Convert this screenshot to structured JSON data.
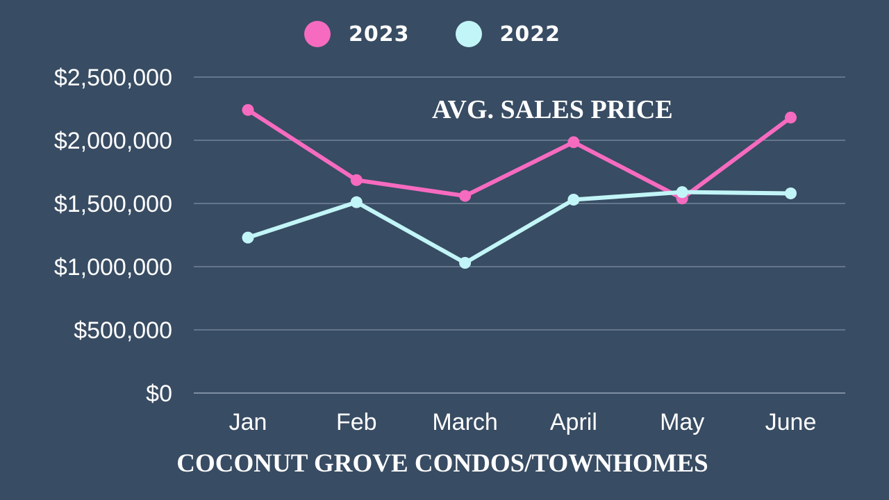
{
  "chart_data": {
    "type": "line",
    "title": "AVG. SALES PRICE",
    "subtitle": "COCONUT GROVE CONDOS/TOWNHOMES",
    "categories": [
      "Jan",
      "Feb",
      "March",
      "April",
      "May",
      "June"
    ],
    "series": [
      {
        "name": "2023",
        "color": "#f66bbf",
        "values": [
          2240000,
          1685000,
          1560000,
          1985000,
          1540000,
          2180000
        ]
      },
      {
        "name": "2022",
        "color": "#c2f5f7",
        "values": [
          1230000,
          1510000,
          1030000,
          1530000,
          1590000,
          1580000
        ]
      }
    ],
    "yticks": [
      "$0",
      "$500,000",
      "$1,000,000",
      "$1,500,000",
      "$2,000,000",
      "$2,500,000"
    ],
    "ylim": [
      0,
      2500000
    ],
    "grid": true,
    "legend_position": "top-center"
  },
  "colors": {
    "background": "#384c63",
    "grid": "#7d8ea3",
    "text": "#ffffff"
  }
}
